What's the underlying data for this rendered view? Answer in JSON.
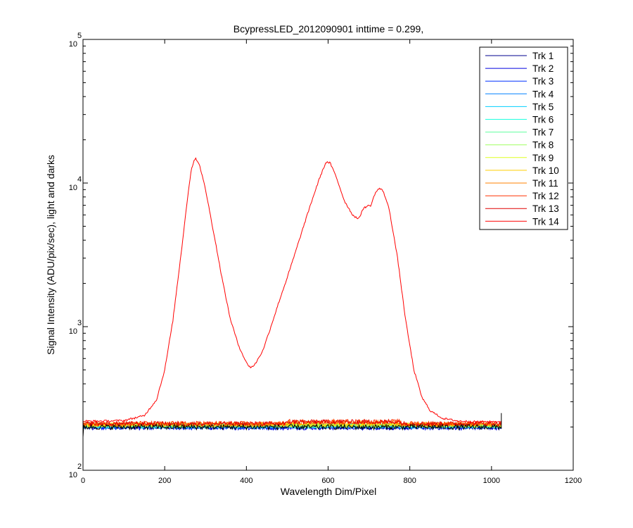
{
  "chart_data": {
    "type": "line",
    "title": "BcypressLED_2012090901 inttime = 0.299,",
    "xlabel": "Wavelength Dim/Pixel",
    "ylabel": "Signal Intensity (ADU/pix/sec), light and darks",
    "xlim": [
      0,
      1200
    ],
    "ylim": [
      100,
      100000
    ],
    "yscale": "log",
    "x_ticks": [
      "0",
      "200",
      "400",
      "600",
      "800",
      "1000",
      "1200"
    ],
    "y_ticks": [
      {
        "base": "10",
        "exp": "2",
        "value": 100
      },
      {
        "base": "10",
        "exp": "3",
        "value": 1000
      },
      {
        "base": "10",
        "exp": "4",
        "value": 10000
      },
      {
        "base": "10",
        "exp": "5",
        "value": 100000
      }
    ],
    "grid": false,
    "legend_position": "top-right",
    "x_range": [
      0,
      1024
    ],
    "series": [
      {
        "name": "Trk 1",
        "color": "#00008f",
        "baseline": 200
      },
      {
        "name": "Trk 2",
        "color": "#0000df",
        "baseline": 198
      },
      {
        "name": "Trk 3",
        "color": "#0030ff",
        "baseline": 201
      },
      {
        "name": "Trk 4",
        "color": "#0080ff",
        "baseline": 202
      },
      {
        "name": "Trk 5",
        "color": "#00cfff",
        "baseline": 203
      },
      {
        "name": "Trk 6",
        "color": "#20ffdf",
        "baseline": 204
      },
      {
        "name": "Trk 7",
        "color": "#60ff9f",
        "baseline": 205
      },
      {
        "name": "Trk 8",
        "color": "#9fff60",
        "baseline": 206
      },
      {
        "name": "Trk 9",
        "color": "#dfff20",
        "baseline": 207
      },
      {
        "name": "Trk 10",
        "color": "#ffcf00",
        "baseline": 208
      },
      {
        "name": "Trk 11",
        "color": "#ff8000",
        "baseline": 209
      },
      {
        "name": "Trk 12",
        "color": "#ff3000",
        "baseline": 212
      },
      {
        "name": "Trk 13",
        "color": "#df0000",
        "baseline": 211
      },
      {
        "name": "Trk 14",
        "color": "#ff0000",
        "points": [
          [
            0,
            220
          ],
          [
            50,
            220
          ],
          [
            100,
            222
          ],
          [
            150,
            240
          ],
          [
            180,
            310
          ],
          [
            200,
            500
          ],
          [
            220,
            1100
          ],
          [
            240,
            3200
          ],
          [
            255,
            7500
          ],
          [
            265,
            12500
          ],
          [
            275,
            15000
          ],
          [
            285,
            13500
          ],
          [
            300,
            9000
          ],
          [
            320,
            4500
          ],
          [
            340,
            2200
          ],
          [
            360,
            1150
          ],
          [
            380,
            750
          ],
          [
            400,
            560
          ],
          [
            410,
            520
          ],
          [
            420,
            540
          ],
          [
            440,
            680
          ],
          [
            460,
            1000
          ],
          [
            480,
            1500
          ],
          [
            500,
            2200
          ],
          [
            520,
            3300
          ],
          [
            540,
            5000
          ],
          [
            560,
            7500
          ],
          [
            580,
            11000
          ],
          [
            595,
            14000
          ],
          [
            605,
            13800
          ],
          [
            620,
            11000
          ],
          [
            640,
            7500
          ],
          [
            660,
            6000
          ],
          [
            675,
            5600
          ],
          [
            685,
            6600
          ],
          [
            695,
            6900
          ],
          [
            705,
            7000
          ],
          [
            715,
            8500
          ],
          [
            725,
            9200
          ],
          [
            735,
            8800
          ],
          [
            750,
            6500
          ],
          [
            770,
            3000
          ],
          [
            790,
            1100
          ],
          [
            810,
            500
          ],
          [
            830,
            320
          ],
          [
            850,
            260
          ],
          [
            880,
            230
          ],
          [
            920,
            220
          ],
          [
            960,
            218
          ],
          [
            1024,
            218
          ]
        ]
      }
    ]
  }
}
